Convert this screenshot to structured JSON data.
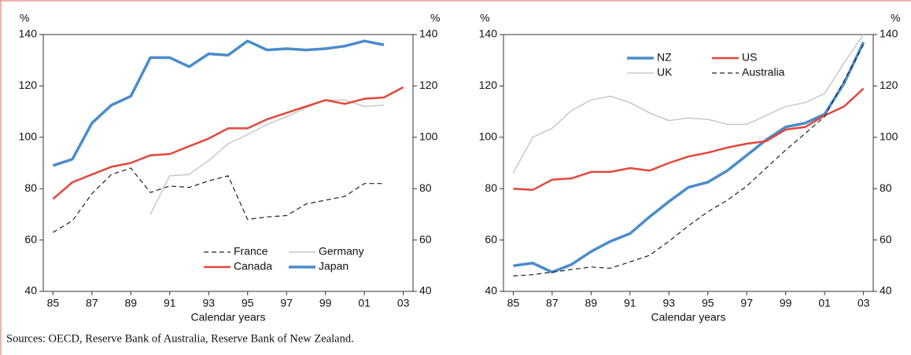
{
  "chart_data": [
    {
      "type": "line",
      "xlabel": "Calendar years",
      "ylabel": "%",
      "y2label": "%",
      "x": [
        1985,
        1986,
        1987,
        1988,
        1989,
        1990,
        1991,
        1992,
        1993,
        1994,
        1995,
        1996,
        1997,
        1998,
        1999,
        2000,
        2001,
        2002,
        2003
      ],
      "xlim": [
        1984.5,
        2003.5
      ],
      "xticks": [
        {
          "value": 1985,
          "label": "85"
        },
        {
          "value": 1987,
          "label": "87"
        },
        {
          "value": 1989,
          "label": "89"
        },
        {
          "value": 1991,
          "label": "91"
        },
        {
          "value": 1993,
          "label": "93"
        },
        {
          "value": 1995,
          "label": "95"
        },
        {
          "value": 1997,
          "label": "97"
        },
        {
          "value": 1999,
          "label": "99"
        },
        {
          "value": 2001,
          "label": "01"
        },
        {
          "value": 2003,
          "label": "03"
        }
      ],
      "ylim": [
        40,
        140
      ],
      "yticks": [
        40,
        60,
        80,
        100,
        120,
        140
      ],
      "y2lim": [
        40,
        140
      ],
      "y2ticks": [
        40,
        60,
        80,
        100,
        120,
        140
      ],
      "legend": "lower right",
      "series": [
        {
          "name": "France",
          "color": "#222222",
          "style": "dashed",
          "width": 1.2,
          "values": [
            63,
            67.5,
            78,
            85.5,
            88,
            78.5,
            81,
            80.5,
            83,
            85,
            68,
            69,
            69.5,
            74,
            75.5,
            77,
            82,
            82,
            null
          ]
        },
        {
          "name": "Germany",
          "color": "#c8c8c8",
          "style": "solid",
          "width": 1.5,
          "values": [
            null,
            null,
            null,
            null,
            null,
            70,
            85,
            85.5,
            91,
            97.5,
            101,
            105,
            108,
            111.5,
            114.5,
            114.5,
            112,
            112.5,
            null
          ]
        },
        {
          "name": "Canada",
          "color": "#e2483a",
          "style": "solid",
          "width": 2.5,
          "values": [
            76,
            82.5,
            85.5,
            88.5,
            90,
            93,
            93.5,
            96.5,
            99.5,
            103.5,
            103.5,
            107,
            109.5,
            112,
            114.5,
            113,
            115,
            115.5,
            119.5
          ]
        },
        {
          "name": "Japan",
          "color": "#4a8ccc",
          "style": "solid",
          "width": 3.5,
          "values": [
            89,
            91.5,
            105.5,
            112.5,
            116,
            131,
            131,
            127.5,
            132.5,
            132,
            137.5,
            134,
            134.5,
            134,
            134.5,
            135.5,
            137.5,
            136,
            null
          ]
        }
      ]
    },
    {
      "type": "line",
      "xlabel": "Calendar years",
      "ylabel": "%",
      "y2label": "%",
      "x": [
        1985,
        1986,
        1987,
        1988,
        1989,
        1990,
        1991,
        1992,
        1993,
        1994,
        1995,
        1996,
        1997,
        1998,
        1999,
        2000,
        2001,
        2002,
        2003
      ],
      "xlim": [
        1984.5,
        2003.5
      ],
      "xticks": [
        {
          "value": 1985,
          "label": "85"
        },
        {
          "value": 1987,
          "label": "87"
        },
        {
          "value": 1989,
          "label": "89"
        },
        {
          "value": 1991,
          "label": "91"
        },
        {
          "value": 1993,
          "label": "93"
        },
        {
          "value": 1995,
          "label": "95"
        },
        {
          "value": 1997,
          "label": "97"
        },
        {
          "value": 1999,
          "label": "99"
        },
        {
          "value": 2001,
          "label": "01"
        },
        {
          "value": 2003,
          "label": "03"
        }
      ],
      "ylim": [
        40,
        140
      ],
      "yticks": [
        40,
        60,
        80,
        100,
        120,
        140
      ],
      "y2lim": [
        40,
        140
      ],
      "y2ticks": [
        40,
        60,
        80,
        100,
        120,
        140
      ],
      "legend": "upper center",
      "series": [
        {
          "name": "NZ",
          "color": "#4a8ccc",
          "style": "solid",
          "width": 3.5,
          "values": [
            50,
            51,
            47.5,
            50.5,
            55.5,
            59.5,
            62.5,
            69,
            75,
            80.5,
            82.5,
            87,
            93,
            99,
            104,
            105.5,
            109,
            121,
            137
          ]
        },
        {
          "name": "US",
          "color": "#e2483a",
          "style": "solid",
          "width": 2.5,
          "values": [
            80,
            79.5,
            83.5,
            84,
            86.5,
            86.5,
            88,
            87,
            90,
            92.5,
            94,
            96,
            97.5,
            98.5,
            103,
            104,
            108.5,
            112,
            119
          ]
        },
        {
          "name": "UK",
          "color": "#c8c8c8",
          "style": "solid",
          "width": 1.5,
          "values": [
            86,
            100,
            103.5,
            110.5,
            114.5,
            116,
            113.5,
            109.5,
            106.5,
            107.5,
            107,
            105,
            105,
            108.5,
            112,
            113.5,
            117,
            129,
            140
          ]
        },
        {
          "name": "Australia",
          "color": "#222222",
          "style": "dashed",
          "width": 1.2,
          "values": [
            46,
            46.5,
            47.5,
            48.5,
            49.5,
            49,
            51.5,
            54,
            59.5,
            65.5,
            71,
            75.5,
            81,
            88,
            95,
            101.5,
            108,
            122,
            136
          ]
        }
      ]
    }
  ],
  "source": "Sources: OECD, Reserve Bank of Australia, Reserve Bank of New Zealand."
}
